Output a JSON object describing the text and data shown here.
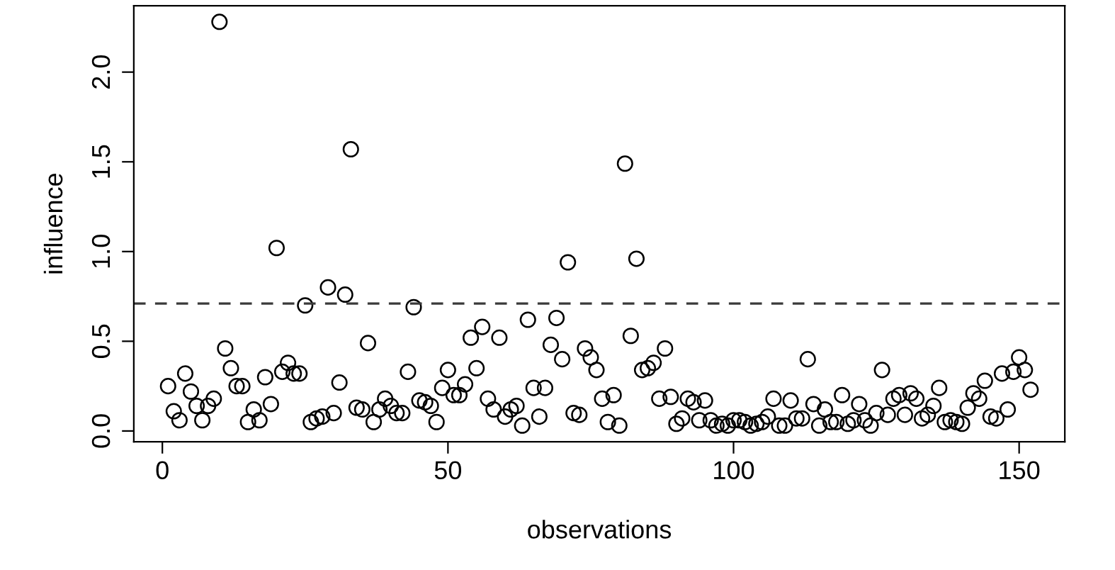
{
  "chart_data": {
    "type": "scatter",
    "xlabel": "observations",
    "ylabel": "influence",
    "x": [
      1,
      2,
      3,
      4,
      5,
      6,
      7,
      8,
      9,
      10,
      11,
      12,
      13,
      14,
      15,
      16,
      17,
      18,
      19,
      20,
      21,
      22,
      23,
      24,
      25,
      26,
      27,
      28,
      29,
      30,
      31,
      32,
      33,
      34,
      35,
      36,
      37,
      38,
      39,
      40,
      41,
      42,
      43,
      44,
      45,
      46,
      47,
      48,
      49,
      50,
      51,
      52,
      53,
      54,
      55,
      56,
      57,
      58,
      59,
      60,
      61,
      62,
      63,
      64,
      65,
      66,
      67,
      68,
      69,
      70,
      71,
      72,
      73,
      74,
      75,
      76,
      77,
      78,
      79,
      80,
      81,
      82,
      83,
      84,
      85,
      86,
      87,
      88,
      89,
      90,
      91,
      92,
      93,
      94,
      95,
      96,
      97,
      98,
      99,
      100,
      101,
      102,
      103,
      104,
      105,
      106,
      107,
      108,
      109,
      110,
      111,
      112,
      113,
      114,
      115,
      116,
      117,
      118,
      119,
      120,
      121,
      122,
      123,
      124,
      125,
      126,
      127,
      128,
      129,
      130,
      131,
      132,
      133,
      134,
      135,
      136,
      137,
      138,
      139,
      140,
      141,
      142,
      143,
      144,
      145,
      146,
      147,
      148,
      149,
      150,
      151,
      152
    ],
    "series": [
      {
        "color": "#000000",
        "values": [
          0.25,
          0.11,
          0.06,
          0.32,
          0.22,
          0.14,
          0.06,
          0.14,
          0.18,
          2.28,
          0.46,
          0.35,
          0.25,
          0.25,
          0.05,
          0.12,
          0.06,
          0.3,
          0.15,
          1.02,
          0.33,
          0.38,
          0.32,
          0.32,
          0.7,
          0.05,
          0.07,
          0.08,
          0.8,
          0.1,
          0.27,
          0.76,
          1.57,
          0.13,
          0.12,
          0.49,
          0.05,
          0.12,
          0.18,
          0.14,
          0.1,
          0.1,
          0.33,
          0.69,
          0.17,
          0.16,
          0.14,
          0.05,
          0.24,
          0.34,
          0.2,
          0.2,
          0.26,
          0.52,
          0.35,
          0.58,
          0.18,
          0.12,
          0.52,
          0.08,
          0.12,
          0.14,
          0.03,
          0.62,
          0.24,
          0.08,
          0.24,
          0.48,
          0.63,
          0.4,
          0.94,
          0.1,
          0.09,
          0.46,
          0.41,
          0.34,
          0.18,
          0.05,
          0.2,
          0.03,
          1.49,
          0.53,
          0.96,
          0.34,
          0.35,
          0.38,
          0.18,
          0.46,
          0.19,
          0.04,
          0.07,
          0.18,
          0.16,
          0.06,
          0.17,
          0.06,
          0.03,
          0.04,
          0.03,
          0.06,
          0.06,
          0.05,
          0.03,
          0.04,
          0.05,
          0.08,
          0.18,
          0.03,
          0.03,
          0.17,
          0.07,
          0.07,
          0.4,
          0.15,
          0.03,
          0.12,
          0.05,
          0.05,
          0.2,
          0.04,
          0.06,
          0.15,
          0.06,
          0.03,
          0.1,
          0.34,
          0.09,
          0.18,
          0.2,
          0.09,
          0.21,
          0.18,
          0.07,
          0.09,
          0.14,
          0.24,
          0.05,
          0.06,
          0.05,
          0.04,
          0.13,
          0.21,
          0.18,
          0.28,
          0.08,
          0.07,
          0.32,
          0.12,
          0.33,
          0.41,
          0.34,
          0.23
        ]
      }
    ],
    "marker": "circle",
    "xlim": [
      -5,
      158
    ],
    "ylim": [
      -0.06,
      2.37
    ],
    "xticks": [
      0,
      50,
      100,
      150
    ],
    "yticks": [
      {
        "value": 0,
        "label": "0.0"
      },
      {
        "value": 0.5,
        "label": "0.5"
      },
      {
        "value": 1,
        "label": "1.0"
      },
      {
        "value": 1.5,
        "label": "1.5"
      },
      {
        "value": 2,
        "label": "2.0"
      }
    ],
    "ref_lines": [
      {
        "axis": "y",
        "value": 0.71,
        "line_style": "dashed",
        "color": "#3a3a3a"
      }
    ],
    "grid": false,
    "legend": false
  }
}
